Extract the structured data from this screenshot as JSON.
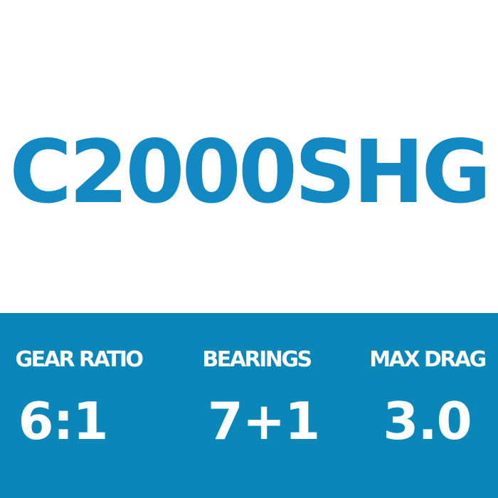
{
  "model": "C2000SHG",
  "colors": {
    "title": "#1389c4",
    "band": "#0a86b8",
    "text_on_band": "#ffffff"
  },
  "specs": [
    {
      "label": "GEAR RATIO",
      "value": "6:1"
    },
    {
      "label": "BEARINGS",
      "value": "7+1"
    },
    {
      "label": "MAX DRAG",
      "value": "3.0"
    }
  ]
}
